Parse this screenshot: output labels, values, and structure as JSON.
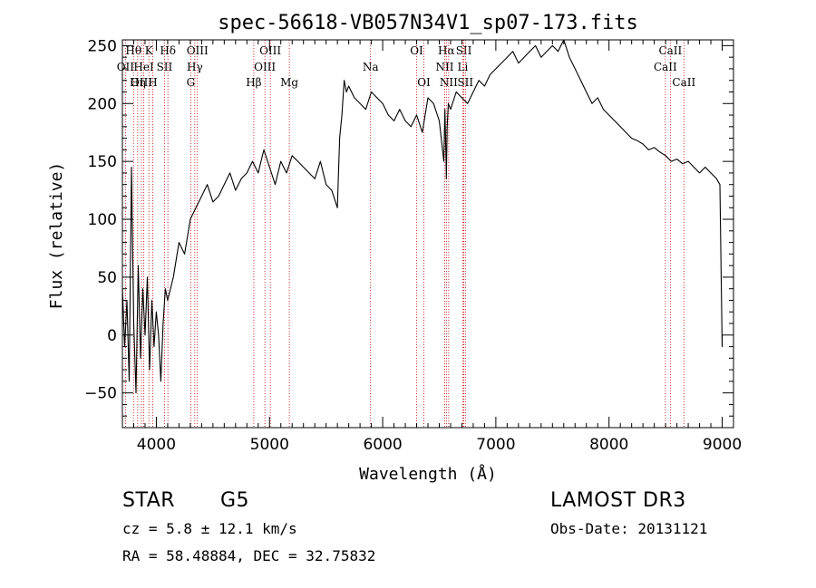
{
  "chart_data": {
    "type": "line",
    "title": "spec-56618-VB057N34V1_sp07-173.fits",
    "xlabel": "Wavelength (Å)",
    "ylabel": "Flux (relative)",
    "xlim": [
      3700,
      9100
    ],
    "ylim": [
      -80,
      255
    ],
    "xticks": [
      4000,
      5000,
      6000,
      7000,
      8000,
      9000
    ],
    "yticks": [
      -50,
      0,
      50,
      100,
      150,
      200,
      250
    ],
    "grid": false,
    "series": [
      {
        "name": "flux",
        "x": [
          3700,
          3720,
          3740,
          3760,
          3780,
          3800,
          3820,
          3840,
          3860,
          3880,
          3900,
          3920,
          3940,
          3960,
          3980,
          4000,
          4020,
          4040,
          4060,
          4080,
          4100,
          4150,
          4200,
          4250,
          4300,
          4350,
          4400,
          4450,
          4500,
          4550,
          4600,
          4650,
          4700,
          4750,
          4800,
          4850,
          4900,
          4950,
          5000,
          5050,
          5100,
          5150,
          5200,
          5250,
          5300,
          5350,
          5400,
          5450,
          5500,
          5550,
          5600,
          5620,
          5640,
          5660,
          5680,
          5700,
          5750,
          5800,
          5850,
          5900,
          5950,
          6000,
          6050,
          6100,
          6150,
          6200,
          6250,
          6300,
          6350,
          6400,
          6450,
          6500,
          6540,
          6550,
          6560,
          6563,
          6570,
          6580,
          6600,
          6650,
          6700,
          6750,
          6800,
          6850,
          6900,
          6950,
          7000,
          7050,
          7100,
          7150,
          7200,
          7250,
          7300,
          7350,
          7400,
          7450,
          7500,
          7550,
          7600,
          7650,
          7700,
          7750,
          7800,
          7850,
          7900,
          7950,
          8000,
          8050,
          8100,
          8150,
          8200,
          8250,
          8300,
          8350,
          8400,
          8450,
          8500,
          8550,
          8600,
          8650,
          8700,
          8750,
          8800,
          8850,
          8900,
          8950,
          8980,
          9000,
          9000
        ],
        "values": [
          40,
          -10,
          30,
          -40,
          145,
          10,
          -50,
          60,
          -20,
          40,
          0,
          50,
          -30,
          30,
          -10,
          20,
          0,
          -40,
          10,
          40,
          30,
          50,
          80,
          70,
          100,
          110,
          120,
          130,
          115,
          120,
          130,
          140,
          125,
          135,
          140,
          150,
          140,
          160,
          145,
          130,
          150,
          140,
          155,
          150,
          145,
          140,
          135,
          150,
          130,
          125,
          110,
          170,
          190,
          220,
          210,
          215,
          205,
          200,
          195,
          210,
          205,
          200,
          190,
          185,
          195,
          185,
          180,
          190,
          175,
          205,
          200,
          185,
          150,
          195,
          150,
          135,
          180,
          200,
          195,
          210,
          205,
          200,
          210,
          220,
          215,
          225,
          230,
          235,
          240,
          245,
          235,
          240,
          245,
          250,
          240,
          245,
          250,
          245,
          255,
          240,
          230,
          220,
          210,
          200,
          205,
          195,
          190,
          185,
          180,
          175,
          170,
          168,
          165,
          160,
          162,
          158,
          155,
          150,
          152,
          148,
          150,
          145,
          140,
          145,
          140,
          135,
          130,
          -10,
          0
        ]
      }
    ],
    "spectral_lines": [
      {
        "label": "Hθ",
        "x": 3798,
        "row": 1
      },
      {
        "label": "OII",
        "x": 3727,
        "row": 2
      },
      {
        "label": "OIII",
        "x": 3869,
        "row": 3
      },
      {
        "label": "K",
        "x": 3934,
        "row": 1
      },
      {
        "label": "HeI",
        "x": 3889,
        "row": 2
      },
      {
        "label": "Hη",
        "x": 3835,
        "row": 3
      },
      {
        "label": "Hδ",
        "x": 4102,
        "row": 1
      },
      {
        "label": "SII",
        "x": 4072,
        "row": 2
      },
      {
        "label": "H",
        "x": 3968,
        "row": 3
      },
      {
        "label": "OIII",
        "x": 4363,
        "row": 1
      },
      {
        "label": "Hγ",
        "x": 4340,
        "row": 2
      },
      {
        "label": "G",
        "x": 4304,
        "row": 3
      },
      {
        "label": "OIII",
        "x": 5007,
        "row": 1
      },
      {
        "label": "OIII",
        "x": 4959,
        "row": 2
      },
      {
        "label": "Hβ",
        "x": 4861,
        "row": 3
      },
      {
        "label": "Mg",
        "x": 5175,
        "row": 3
      },
      {
        "label": "Na",
        "x": 5893,
        "row": 2
      },
      {
        "label": "OI",
        "x": 6300,
        "row": 1
      },
      {
        "label": "OI",
        "x": 6364,
        "row": 3
      },
      {
        "label": "Hα",
        "x": 6563,
        "row": 1
      },
      {
        "label": "NII",
        "x": 6548,
        "row": 2
      },
      {
        "label": "NII",
        "x": 6583,
        "row": 3
      },
      {
        "label": "SII",
        "x": 6717,
        "row": 1
      },
      {
        "label": "Li",
        "x": 6708,
        "row": 2
      },
      {
        "label": "SII",
        "x": 6731,
        "row": 3
      },
      {
        "label": "CaII",
        "x": 8542,
        "row": 1
      },
      {
        "label": "CaII",
        "x": 8498,
        "row": 2
      },
      {
        "label": "CaII",
        "x": 8662,
        "row": 3
      }
    ]
  },
  "info": {
    "object_class": "STAR",
    "subclass": "G5",
    "survey": "LAMOST DR3",
    "redshift": "cz =  5.8 ± 12.1 km/s",
    "obs_date": "Obs-Date: 20131121",
    "coords": "RA =  58.48884, DEC =  32.75832"
  },
  "colors": {
    "line_marker": "#cc0000",
    "spectrum": "#000000"
  }
}
